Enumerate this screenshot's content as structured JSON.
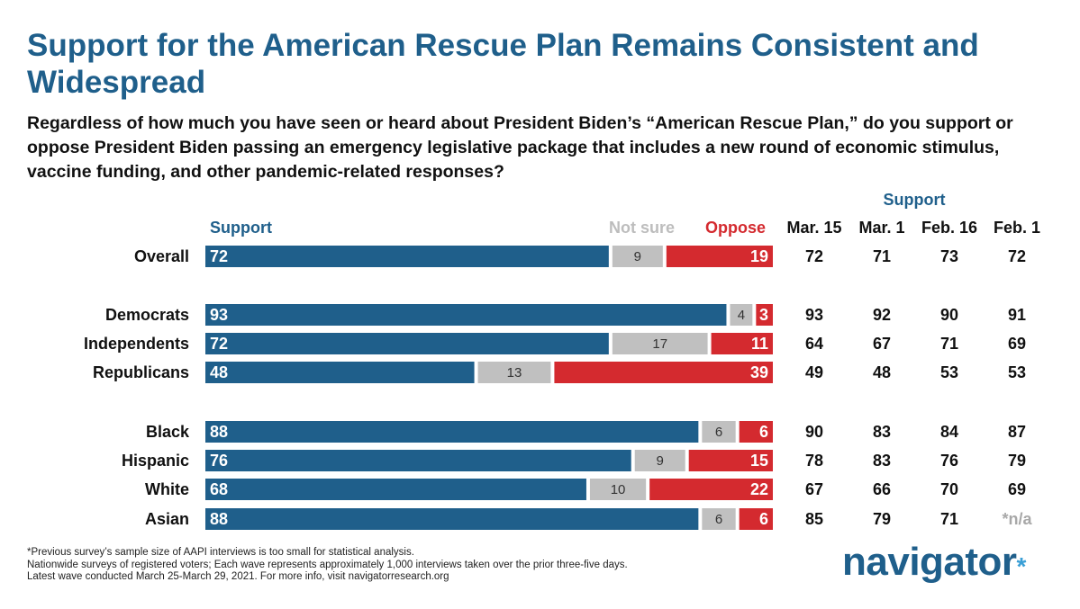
{
  "title": "Support for the American Rescue Plan Remains Consistent and Widespread",
  "question": "Regardless of how much you have seen or heard about President Biden’s “American Rescue Plan,” do you support or oppose President Biden passing an emergency legislative package that includes a new round of economic stimulus, vaccine funding, and other pandemic-related responses?",
  "headers": {
    "support": "Support",
    "not_sure": "Not sure",
    "oppose": "Oppose",
    "support_group": "Support",
    "waves": [
      "Mar. 15",
      "Mar. 1",
      "Feb. 16",
      "Feb. 1"
    ]
  },
  "colors": {
    "support": "#1f5f8b",
    "not_sure": "#c0c0c0",
    "oppose": "#d42a2f",
    "title": "#1f5f8b",
    "na_text": "#a8a8a8"
  },
  "chart_data": {
    "type": "bar",
    "orientation": "horizontal-stacked",
    "segments": [
      "Support",
      "Not sure",
      "Oppose"
    ],
    "groups": [
      [
        "Overall"
      ],
      [
        "Democrats",
        "Independents",
        "Republicans"
      ],
      [
        "Black",
        "Hispanic",
        "White",
        "Asian"
      ]
    ],
    "rows": [
      {
        "label": "Overall",
        "support": 72,
        "not_sure": 9,
        "oppose": 19,
        "trend": [
          "72",
          "71",
          "73",
          "72"
        ]
      },
      {
        "label": "Democrats",
        "support": 93,
        "not_sure": 4,
        "oppose": 3,
        "trend": [
          "93",
          "92",
          "90",
          "91"
        ]
      },
      {
        "label": "Independents",
        "support": 72,
        "not_sure": 17,
        "oppose": 11,
        "trend": [
          "64",
          "67",
          "71",
          "69"
        ]
      },
      {
        "label": "Republicans",
        "support": 48,
        "not_sure": 13,
        "oppose": 39,
        "trend": [
          "49",
          "48",
          "53",
          "53"
        ]
      },
      {
        "label": "Black",
        "support": 88,
        "not_sure": 6,
        "oppose": 6,
        "trend": [
          "90",
          "83",
          "84",
          "87"
        ]
      },
      {
        "label": "Hispanic",
        "support": 76,
        "not_sure": 9,
        "oppose": 15,
        "trend": [
          "78",
          "83",
          "76",
          "79"
        ]
      },
      {
        "label": "White",
        "support": 68,
        "not_sure": 10,
        "oppose": 22,
        "trend": [
          "67",
          "66",
          "70",
          "69"
        ]
      },
      {
        "label": "Asian",
        "support": 88,
        "not_sure": 6,
        "oppose": 6,
        "trend": [
          "85",
          "79",
          "71",
          "*n/a"
        ]
      }
    ],
    "xlim": [
      0,
      100
    ]
  },
  "footnotes": [
    "*Previous survey’s sample size of AAPI interviews is too small for statistical analysis.",
    "Nationwide surveys of registered voters; Each wave represents approximately 1,000 interviews taken over the prior three-five days.",
    "Latest wave conducted March 25-March 29, 2021. For more info, visit navigatorresearch.org"
  ],
  "logo": {
    "text": "navigator",
    "dot": "*"
  }
}
